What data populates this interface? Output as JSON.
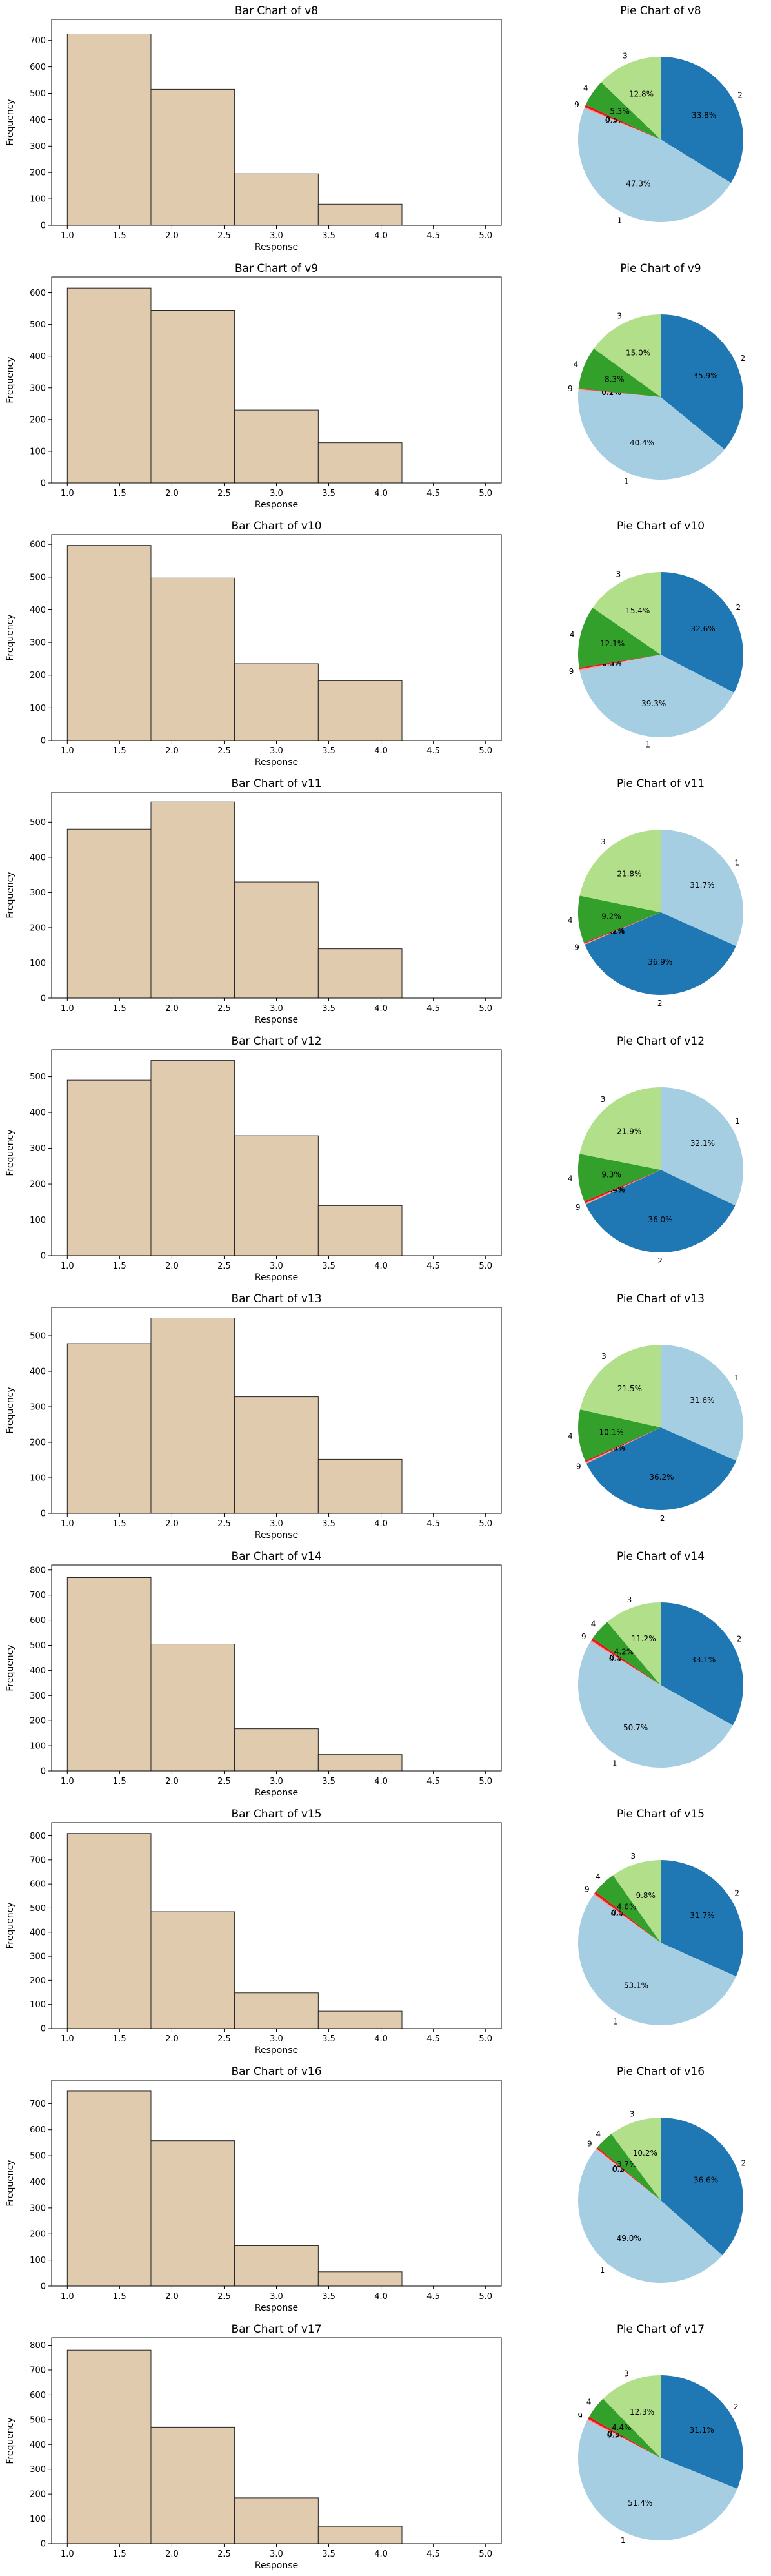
{
  "style": {
    "bar_fill": "#e0cbae",
    "bar_edge": "#222222",
    "pie_colors": {
      "1": "#a6cee3",
      "2": "#1f78b4",
      "3": "#b2df8a",
      "4": "#33a02c",
      "9": "#fb9a99",
      "other": "#e31a1c"
    }
  },
  "chart_data": [
    {
      "type": "bar",
      "title": "Bar Chart of v8",
      "xlabel": "Response",
      "ylabel": "Frequency",
      "bins": [
        [
          1.0,
          1.8
        ],
        [
          1.8,
          2.6
        ],
        [
          2.6,
          3.4
        ],
        [
          3.4,
          4.2
        ]
      ],
      "values": [
        725,
        515,
        195,
        80
      ],
      "xlim": [
        0.85,
        5.15
      ],
      "ylim": [
        0,
        780
      ],
      "xticks": [
        "1.0",
        "1.5",
        "2.0",
        "2.5",
        "3.0",
        "3.5",
        "4.0",
        "4.5",
        "5.0"
      ],
      "yticks": [
        0,
        100,
        200,
        300,
        400,
        500,
        600,
        700
      ]
    },
    {
      "type": "pie",
      "title": "Pie Chart of v8",
      "slices": [
        {
          "label": "2",
          "value": 33.8,
          "pct": "33.8%"
        },
        {
          "label": "1",
          "value": 47.3,
          "pct": "47.3%"
        },
        {
          "label": "9",
          "value": 0.3,
          "pct": "0.3%"
        },
        {
          "label": "",
          "value": 0.5,
          "pct": "0.5%"
        },
        {
          "label": "4",
          "value": 5.3,
          "pct": "5.3%"
        },
        {
          "label": "3",
          "value": 12.8,
          "pct": "12.8%"
        }
      ]
    },
    {
      "type": "bar",
      "title": "Bar Chart of v9",
      "xlabel": "Response",
      "ylabel": "Frequency",
      "bins": [
        [
          1.0,
          1.8
        ],
        [
          1.8,
          2.6
        ],
        [
          2.6,
          3.4
        ],
        [
          3.4,
          4.2
        ]
      ],
      "values": [
        615,
        545,
        230,
        127
      ],
      "xlim": [
        0.85,
        5.15
      ],
      "ylim": [
        0,
        650
      ],
      "xticks": [
        "1.0",
        "1.5",
        "2.0",
        "2.5",
        "3.0",
        "3.5",
        "4.0",
        "4.5",
        "5.0"
      ],
      "yticks": [
        0,
        100,
        200,
        300,
        400,
        500,
        600
      ]
    },
    {
      "type": "pie",
      "title": "Pie Chart of v9",
      "slices": [
        {
          "label": "2",
          "value": 35.9,
          "pct": "35.9%"
        },
        {
          "label": "1",
          "value": 40.4,
          "pct": "40.4%"
        },
        {
          "label": "9",
          "value": 0.2,
          "pct": "0.2%"
        },
        {
          "label": "",
          "value": 0.1,
          "pct": "0.1%"
        },
        {
          "label": "4",
          "value": 8.3,
          "pct": "8.3%"
        },
        {
          "label": "3",
          "value": 15.0,
          "pct": "15.0%"
        }
      ]
    },
    {
      "type": "bar",
      "title": "Bar Chart of v10",
      "xlabel": "Response",
      "ylabel": "Frequency",
      "bins": [
        [
          1.0,
          1.8
        ],
        [
          1.8,
          2.6
        ],
        [
          2.6,
          3.4
        ],
        [
          3.4,
          4.2
        ]
      ],
      "values": [
        597,
        497,
        235,
        183
      ],
      "xlim": [
        0.85,
        5.15
      ],
      "ylim": [
        0,
        630
      ],
      "xticks": [
        "1.0",
        "1.5",
        "2.0",
        "2.5",
        "3.0",
        "3.5",
        "4.0",
        "4.5",
        "5.0"
      ],
      "yticks": [
        0,
        100,
        200,
        300,
        400,
        500,
        600
      ]
    },
    {
      "type": "pie",
      "title": "Pie Chart of v10",
      "slices": [
        {
          "label": "2",
          "value": 32.6,
          "pct": "32.6%"
        },
        {
          "label": "1",
          "value": 39.3,
          "pct": "39.3%"
        },
        {
          "label": "9",
          "value": 0.3,
          "pct": "0.3%"
        },
        {
          "label": "",
          "value": 0.3,
          "pct": "0.3%"
        },
        {
          "label": "4",
          "value": 12.1,
          "pct": "12.1%"
        },
        {
          "label": "3",
          "value": 15.4,
          "pct": "15.4%"
        }
      ]
    },
    {
      "type": "bar",
      "title": "Bar Chart of v11",
      "xlabel": "Response",
      "ylabel": "Frequency",
      "bins": [
        [
          1.0,
          1.8
        ],
        [
          1.8,
          2.6
        ],
        [
          2.6,
          3.4
        ],
        [
          3.4,
          4.2
        ]
      ],
      "values": [
        480,
        557,
        330,
        140
      ],
      "xlim": [
        0.85,
        5.15
      ],
      "ylim": [
        0,
        585
      ],
      "xticks": [
        "1.0",
        "1.5",
        "2.0",
        "2.5",
        "3.0",
        "3.5",
        "4.0",
        "4.5",
        "5.0"
      ],
      "yticks": [
        0,
        100,
        200,
        300,
        400,
        500
      ]
    },
    {
      "type": "pie",
      "title": "Pie Chart of v11",
      "slices": [
        {
          "label": "1",
          "value": 31.7,
          "pct": "31.7%"
        },
        {
          "label": "2",
          "value": 36.9,
          "pct": "36.9%"
        },
        {
          "label": "9",
          "value": 0.2,
          "pct": "0.2%"
        },
        {
          "label": "",
          "value": 0.2,
          "pct": "0.2%"
        },
        {
          "label": "4",
          "value": 9.2,
          "pct": "9.2%"
        },
        {
          "label": "3",
          "value": 21.8,
          "pct": "21.8%"
        }
      ]
    },
    {
      "type": "bar",
      "title": "Bar Chart of v12",
      "xlabel": "Response",
      "ylabel": "Frequency",
      "bins": [
        [
          1.0,
          1.8
        ],
        [
          1.8,
          2.6
        ],
        [
          2.6,
          3.4
        ],
        [
          3.4,
          4.2
        ]
      ],
      "values": [
        490,
        545,
        335,
        140
      ],
      "xlim": [
        0.85,
        5.15
      ],
      "ylim": [
        0,
        575
      ],
      "xticks": [
        "1.0",
        "1.5",
        "2.0",
        "2.5",
        "3.0",
        "3.5",
        "4.0",
        "4.5",
        "5.0"
      ],
      "yticks": [
        0,
        100,
        200,
        300,
        400,
        500
      ]
    },
    {
      "type": "pie",
      "title": "Pie Chart of v12",
      "slices": [
        {
          "label": "1",
          "value": 32.1,
          "pct": "32.1%"
        },
        {
          "label": "2",
          "value": 36.0,
          "pct": "36.0%"
        },
        {
          "label": "9",
          "value": 0.3,
          "pct": "0.3%"
        },
        {
          "label": "",
          "value": 0.4,
          "pct": "0.4%"
        },
        {
          "label": "4",
          "value": 9.3,
          "pct": "9.3%"
        },
        {
          "label": "3",
          "value": 21.9,
          "pct": "21.9%"
        }
      ]
    },
    {
      "type": "bar",
      "title": "Bar Chart of v13",
      "xlabel": "Response",
      "ylabel": "Frequency",
      "bins": [
        [
          1.0,
          1.8
        ],
        [
          1.8,
          2.6
        ],
        [
          2.6,
          3.4
        ],
        [
          3.4,
          4.2
        ]
      ],
      "values": [
        478,
        550,
        328,
        152
      ],
      "xlim": [
        0.85,
        5.15
      ],
      "ylim": [
        0,
        580
      ],
      "xticks": [
        "1.0",
        "1.5",
        "2.0",
        "2.5",
        "3.0",
        "3.5",
        "4.0",
        "4.5",
        "5.0"
      ],
      "yticks": [
        0,
        100,
        200,
        300,
        400,
        500
      ]
    },
    {
      "type": "pie",
      "title": "Pie Chart of v13",
      "slices": [
        {
          "label": "1",
          "value": 31.6,
          "pct": "31.6%"
        },
        {
          "label": "2",
          "value": 36.2,
          "pct": "36.2%"
        },
        {
          "label": "9",
          "value": 0.3,
          "pct": "0.3%"
        },
        {
          "label": "",
          "value": 0.3,
          "pct": "0.3%"
        },
        {
          "label": "4",
          "value": 10.1,
          "pct": "10.1%"
        },
        {
          "label": "3",
          "value": 21.5,
          "pct": "21.5%"
        }
      ]
    },
    {
      "type": "bar",
      "title": "Bar Chart of v14",
      "xlabel": "Response",
      "ylabel": "Frequency",
      "bins": [
        [
          1.0,
          1.8
        ],
        [
          1.8,
          2.6
        ],
        [
          2.6,
          3.4
        ],
        [
          3.4,
          4.2
        ]
      ],
      "values": [
        770,
        505,
        168,
        65
      ],
      "xlim": [
        0.85,
        5.15
      ],
      "ylim": [
        0,
        820
      ],
      "xticks": [
        "1.0",
        "1.5",
        "2.0",
        "2.5",
        "3.0",
        "3.5",
        "4.0",
        "4.5",
        "5.0"
      ],
      "yticks": [
        0,
        100,
        200,
        300,
        400,
        500,
        600,
        700,
        800
      ]
    },
    {
      "type": "pie",
      "title": "Pie Chart of v14",
      "slices": [
        {
          "label": "2",
          "value": 33.1,
          "pct": "33.1%"
        },
        {
          "label": "1",
          "value": 50.7,
          "pct": "50.7%"
        },
        {
          "label": "9",
          "value": 0.3,
          "pct": "0.3%"
        },
        {
          "label": "",
          "value": 0.5,
          "pct": "0.5%"
        },
        {
          "label": "4",
          "value": 4.2,
          "pct": "4.2%"
        },
        {
          "label": "3",
          "value": 11.2,
          "pct": "11.2%"
        }
      ]
    },
    {
      "type": "bar",
      "title": "Bar Chart of v15",
      "xlabel": "Response",
      "ylabel": "Frequency",
      "bins": [
        [
          1.0,
          1.8
        ],
        [
          1.8,
          2.6
        ],
        [
          2.6,
          3.4
        ],
        [
          3.4,
          4.2
        ]
      ],
      "values": [
        810,
        485,
        148,
        72
      ],
      "xlim": [
        0.85,
        5.15
      ],
      "ylim": [
        0,
        855
      ],
      "xticks": [
        "1.0",
        "1.5",
        "2.0",
        "2.5",
        "3.0",
        "3.5",
        "4.0",
        "4.5",
        "5.0"
      ],
      "yticks": [
        0,
        100,
        200,
        300,
        400,
        500,
        600,
        700,
        800
      ]
    },
    {
      "type": "pie",
      "title": "Pie Chart of v15",
      "slices": [
        {
          "label": "2",
          "value": 31.7,
          "pct": "31.7%"
        },
        {
          "label": "1",
          "value": 53.1,
          "pct": "53.1%"
        },
        {
          "label": "9",
          "value": 0.3,
          "pct": "0.3%"
        },
        {
          "label": "",
          "value": 0.5,
          "pct": "0.5%"
        },
        {
          "label": "4",
          "value": 4.6,
          "pct": "4.6%"
        },
        {
          "label": "3",
          "value": 9.8,
          "pct": "9.8%"
        }
      ]
    },
    {
      "type": "bar",
      "title": "Bar Chart of v16",
      "xlabel": "Response",
      "ylabel": "Frequency",
      "bins": [
        [
          1.0,
          1.8
        ],
        [
          1.8,
          2.6
        ],
        [
          2.6,
          3.4
        ],
        [
          3.4,
          4.2
        ]
      ],
      "values": [
        748,
        558,
        155,
        55
      ],
      "xlim": [
        0.85,
        5.15
      ],
      "ylim": [
        0,
        790
      ],
      "xticks": [
        "1.0",
        "1.5",
        "2.0",
        "2.5",
        "3.0",
        "3.5",
        "4.0",
        "4.5",
        "5.0"
      ],
      "yticks": [
        0,
        100,
        200,
        300,
        400,
        500,
        600,
        700
      ]
    },
    {
      "type": "pie",
      "title": "Pie Chart of v16",
      "slices": [
        {
          "label": "2",
          "value": 36.6,
          "pct": "36.6%"
        },
        {
          "label": "1",
          "value": 49.0,
          "pct": "49.0%"
        },
        {
          "label": "9",
          "value": 0.2,
          "pct": "0.2%"
        },
        {
          "label": "",
          "value": 0.3,
          "pct": "0.3%"
        },
        {
          "label": "4",
          "value": 3.7,
          "pct": "3.7%"
        },
        {
          "label": "3",
          "value": 10.2,
          "pct": "10.2%"
        }
      ]
    },
    {
      "type": "bar",
      "title": "Bar Chart of v17",
      "xlabel": "Response",
      "ylabel": "Frequency",
      "bins": [
        [
          1.0,
          1.8
        ],
        [
          1.8,
          2.6
        ],
        [
          2.6,
          3.4
        ],
        [
          3.4,
          4.2
        ]
      ],
      "values": [
        780,
        470,
        185,
        70
      ],
      "xlim": [
        0.85,
        5.15
      ],
      "ylim": [
        0,
        830
      ],
      "xticks": [
        "1.0",
        "1.5",
        "2.0",
        "2.5",
        "3.0",
        "3.5",
        "4.0",
        "4.5",
        "5.0"
      ],
      "yticks": [
        0,
        100,
        200,
        300,
        400,
        500,
        600,
        700,
        800
      ]
    },
    {
      "type": "pie",
      "title": "Pie Chart of v17",
      "slices": [
        {
          "label": "2",
          "value": 31.1,
          "pct": "31.1%"
        },
        {
          "label": "1",
          "value": 51.4,
          "pct": "51.4%"
        },
        {
          "label": "9",
          "value": 0.3,
          "pct": "0.3%"
        },
        {
          "label": "",
          "value": 0.5,
          "pct": "0.5%"
        },
        {
          "label": "4",
          "value": 4.4,
          "pct": "4.4%"
        },
        {
          "label": "3",
          "value": 12.3,
          "pct": "12.3%"
        }
      ]
    }
  ]
}
